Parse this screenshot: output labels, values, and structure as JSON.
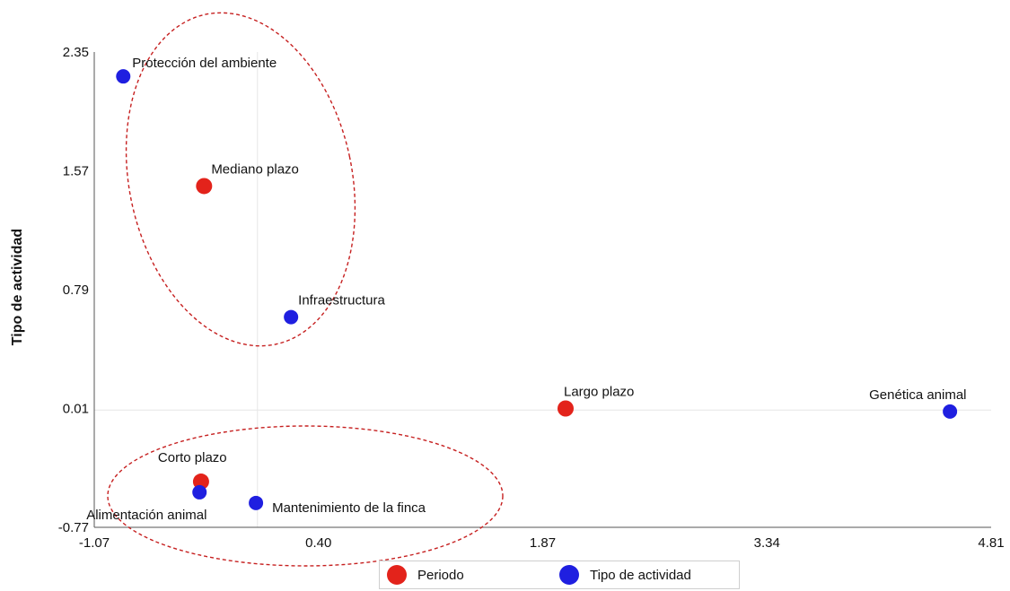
{
  "chart_data": {
    "type": "scatter",
    "title": "",
    "xlabel": "",
    "ylabel": "Tipo de actividad",
    "xlim": [
      -1.07,
      4.81
    ],
    "ylim": [
      -0.77,
      2.35
    ],
    "xticks": [
      "-1.07",
      "0.40",
      "1.87",
      "3.34",
      "4.81"
    ],
    "yticks": [
      "2.35",
      "1.57",
      "0.79",
      "0.01",
      "-0.77"
    ],
    "grid": "reference lines at x=0 and y=0",
    "legend_placement": "bottom-center",
    "series": [
      {
        "name": "Periodo",
        "color": "#e3231b",
        "points": [
          {
            "label": "Mediano plazo",
            "x": -0.35,
            "y": 1.47
          },
          {
            "label": "Corto plazo",
            "x": -0.37,
            "y": -0.47
          },
          {
            "label": "Largo plazo",
            "x": 2.02,
            "y": 0.01
          }
        ]
      },
      {
        "name": "Tipo de actividad",
        "color": "#1f1fe0",
        "points": [
          {
            "label": "Protección del ambiente",
            "x": -0.88,
            "y": 2.19
          },
          {
            "label": "Infraestructura",
            "x": 0.22,
            "y": 0.61
          },
          {
            "label": "Genética animal",
            "x": 4.54,
            "y": -0.01
          },
          {
            "label": "Alimentación animal",
            "x": -0.38,
            "y": -0.54
          },
          {
            "label": "Mantenimiento de la finca",
            "x": -0.01,
            "y": -0.61
          }
        ]
      }
    ]
  }
}
